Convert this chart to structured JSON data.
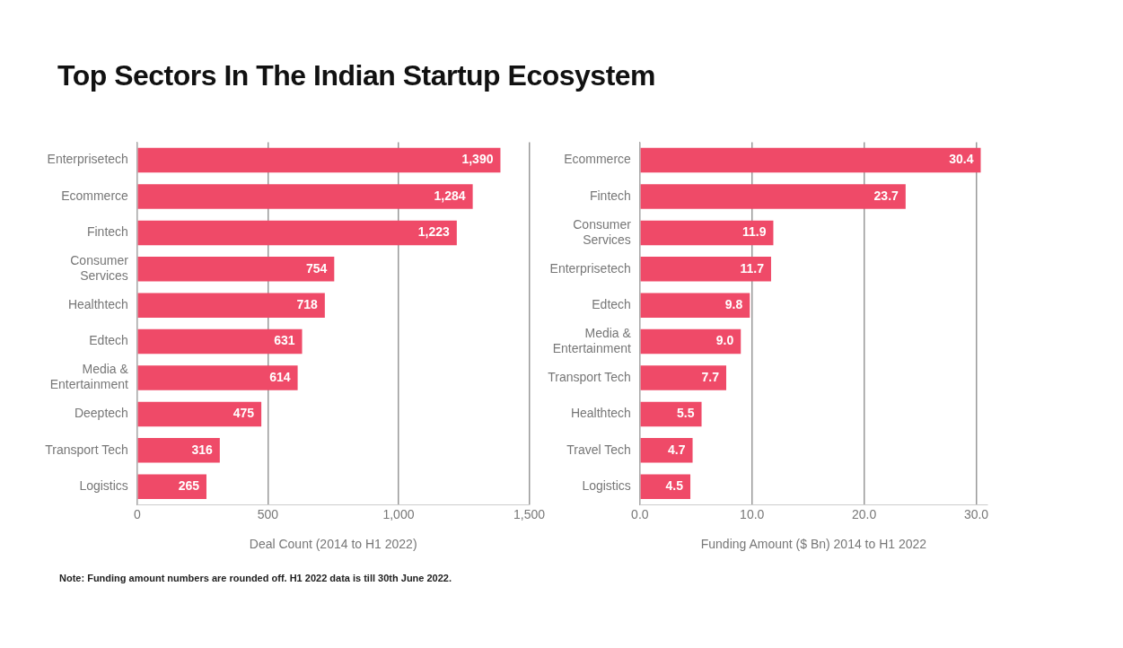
{
  "chart_data": [
    {
      "type": "bar",
      "orientation": "horizontal",
      "title": "Top Sectors In The Indian Startup Ecosystem",
      "xlabel": "Deal Count (2014 to H1 2022)",
      "categories": [
        "Enterprisetech",
        "Ecommerce",
        "Fintech",
        "Consumer Services",
        "Healthtech",
        "Edtech",
        "Media & Entertainment",
        "Deeptech",
        "Transport Tech",
        "Logistics"
      ],
      "values": [
        1390,
        1284,
        1223,
        754,
        718,
        631,
        614,
        475,
        316,
        265
      ],
      "value_labels": [
        "1,390",
        "1,284",
        "1,223",
        "754",
        "718",
        "631",
        "614",
        "475",
        "316",
        "265"
      ],
      "color": "#ef4a68",
      "xlim": [
        0,
        1500
      ],
      "xticks": [
        0,
        500,
        {
          "value": 1000,
          "label": "1,000"
        },
        {
          "value": 1500,
          "label": "1,500"
        }
      ],
      "grid": "x",
      "annotations": [
        "Note: Funding amount numbers are rounded off. H1 2022 data is till 30th June 2022."
      ]
    },
    {
      "type": "bar",
      "orientation": "horizontal",
      "xlabel": "Funding Amount ($ Bn) 2014 to H1 2022",
      "categories": [
        "Ecommerce",
        "Fintech",
        "Consumer Services",
        "Enterprisetech",
        "Edtech",
        "Media & Entertainment",
        "Transport Tech",
        "Healthtech",
        "Travel Tech",
        "Logistics"
      ],
      "values": [
        30.4,
        23.7,
        11.9,
        11.7,
        9.8,
        9.0,
        7.7,
        5.5,
        4.7,
        4.5
      ],
      "value_labels": [
        "30.4",
        "23.7",
        "11.9",
        "11.7",
        "9.8",
        "9.0",
        "7.7",
        "5.5",
        "4.7",
        "4.5"
      ],
      "color": "#ef4a68",
      "xlim": [
        0,
        31
      ],
      "xticks": [
        {
          "value": 0,
          "label": "0.0"
        },
        {
          "value": 10,
          "label": "10.0"
        },
        {
          "value": 20,
          "label": "20.0"
        },
        {
          "value": 30,
          "label": "30.0"
        }
      ],
      "grid": "x"
    }
  ]
}
